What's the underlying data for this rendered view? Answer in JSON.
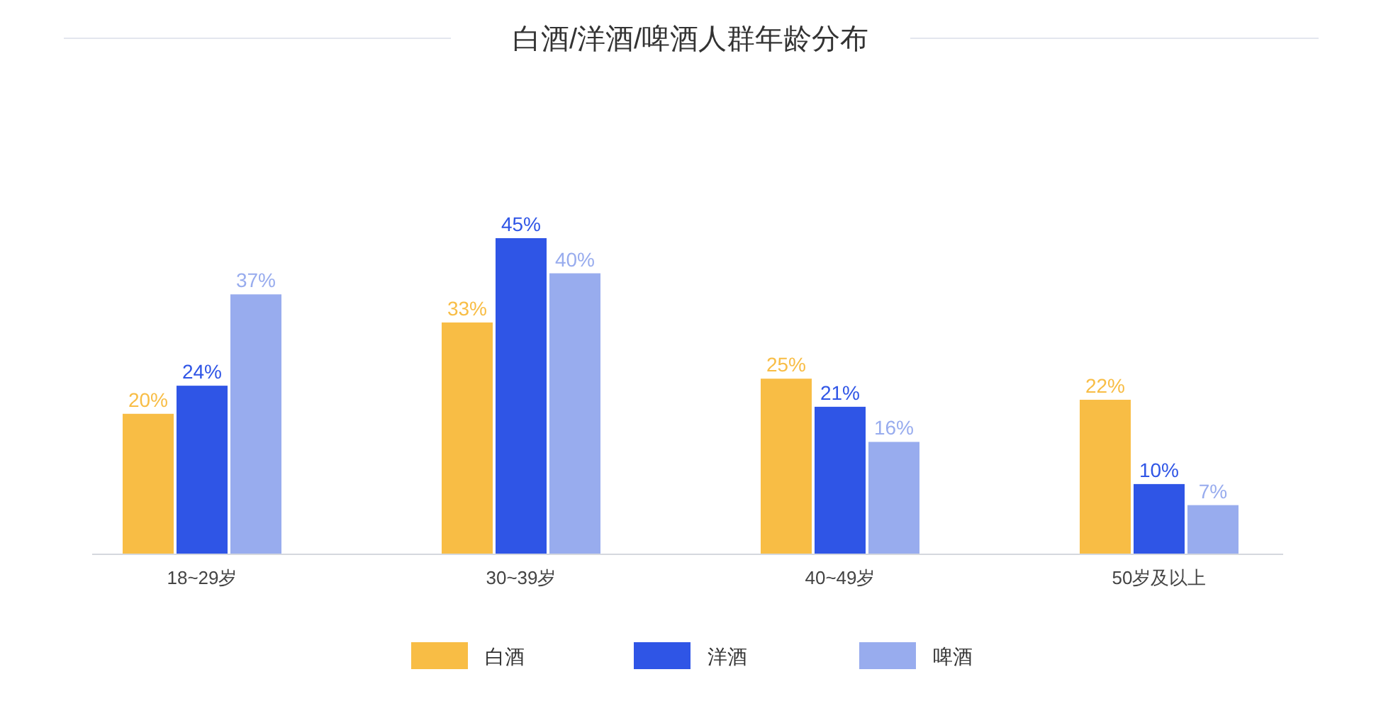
{
  "chart_data": {
    "type": "bar",
    "title": "白酒/洋酒/啤酒人群年龄分布",
    "categories": [
      "18~29岁",
      "30~39岁",
      "40~49岁",
      "50岁及以上"
    ],
    "series": [
      {
        "name": "白酒",
        "color": "#f8bd45",
        "values": [
          20,
          33,
          25,
          22
        ],
        "value_labels": [
          "20%",
          "33%",
          "25%",
          "22%"
        ]
      },
      {
        "name": "洋酒",
        "color": "#2f55e6",
        "values": [
          24,
          45,
          21,
          10
        ],
        "value_labels": [
          "24%",
          "45%",
          "21%",
          "10%"
        ]
      },
      {
        "name": "啤酒",
        "color": "#98acee",
        "values": [
          37,
          40,
          16,
          7
        ],
        "value_labels": [
          "37%",
          "40%",
          "16%",
          "7%"
        ]
      }
    ],
    "legend": "bottom",
    "grid": false
  }
}
